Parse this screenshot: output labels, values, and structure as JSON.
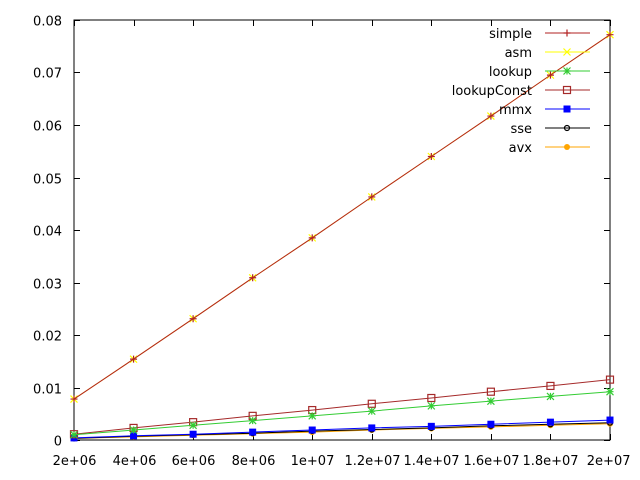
{
  "chart_data": {
    "type": "line",
    "title": "",
    "xlabel": "",
    "ylabel": "",
    "xlim": [
      2000000,
      20000000
    ],
    "ylim": [
      0,
      0.08
    ],
    "grid": false,
    "legend_position": "top-right",
    "x_ticks": [
      "2e+06",
      "4e+06",
      "6e+06",
      "8e+06",
      "1e+07",
      "1.2e+07",
      "1.4e+07",
      "1.6e+07",
      "1.8e+07",
      "2e+07"
    ],
    "y_ticks": [
      "0",
      "0.01",
      "0.02",
      "0.03",
      "0.04",
      "0.05",
      "0.06",
      "0.07",
      "0.08"
    ],
    "x": [
      2000000,
      4000000,
      6000000,
      8000000,
      10000000,
      12000000,
      14000000,
      16000000,
      18000000,
      20000000
    ],
    "series": [
      {
        "name": "simple",
        "color": "#b22222",
        "marker": "plus",
        "values": [
          0.0078,
          0.0154,
          0.0231,
          0.0309,
          0.0385,
          0.0463,
          0.054,
          0.0617,
          0.0695,
          0.0772
        ]
      },
      {
        "name": "asm",
        "color": "#ffff00",
        "marker": "x",
        "values": [
          0.0078,
          0.0154,
          0.0231,
          0.0309,
          0.0385,
          0.0463,
          0.054,
          0.0617,
          0.0695,
          0.0772
        ]
      },
      {
        "name": "lookup",
        "color": "#33cc33",
        "marker": "star",
        "values": [
          0.001,
          0.0019,
          0.0028,
          0.0037,
          0.0046,
          0.0055,
          0.0065,
          0.0074,
          0.0083,
          0.0092
        ]
      },
      {
        "name": "lookupConst",
        "color": "#a52a2a",
        "marker": "open-square",
        "values": [
          0.0011,
          0.0023,
          0.0034,
          0.0046,
          0.0057,
          0.0069,
          0.008,
          0.0092,
          0.0103,
          0.0115
        ]
      },
      {
        "name": "mmx",
        "color": "#0000ff",
        "marker": "filled-square",
        "values": [
          0.0004,
          0.0008,
          0.0011,
          0.0015,
          0.0019,
          0.0023,
          0.0026,
          0.003,
          0.0034,
          0.0038
        ]
      },
      {
        "name": "sse",
        "color": "#000000",
        "marker": "open-circle",
        "values": [
          0.0003,
          0.0007,
          0.001,
          0.0013,
          0.0017,
          0.002,
          0.0023,
          0.0027,
          0.003,
          0.0033
        ]
      },
      {
        "name": "avx",
        "color": "#ffa500",
        "marker": "filled-circle",
        "values": [
          0.0003,
          0.0006,
          0.0009,
          0.0012,
          0.0015,
          0.0019,
          0.0022,
          0.0025,
          0.0028,
          0.0031
        ]
      }
    ]
  }
}
